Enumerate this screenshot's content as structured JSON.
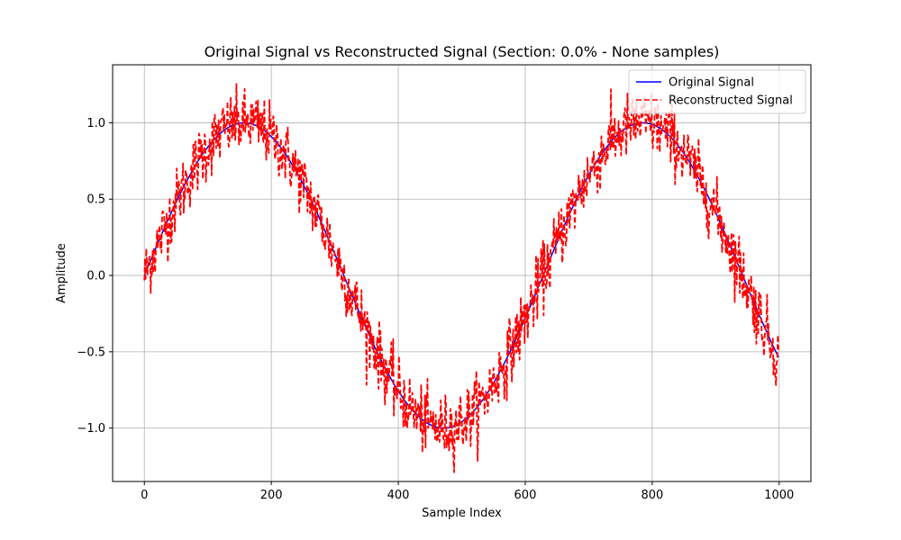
{
  "chart_data": {
    "type": "line",
    "title": "Original Signal vs Reconstructed Signal (Section: 0.0% - None samples)",
    "xlabel": "Sample Index",
    "ylabel": "Amplitude",
    "xlim": [
      -50,
      1050
    ],
    "ylim": [
      -1.35,
      1.38
    ],
    "xticks": [
      0,
      200,
      400,
      600,
      800,
      1000
    ],
    "yticks": [
      -1.0,
      -0.5,
      0.0,
      0.5,
      1.0
    ],
    "xtick_labels": [
      "0",
      "200",
      "400",
      "600",
      "800",
      "1000"
    ],
    "ytick_labels": [
      "−1.0",
      "−0.5",
      "0.0",
      "0.5",
      "1.0"
    ],
    "grid": true,
    "legend_position": "top-right",
    "signal": {
      "form": "sine",
      "amplitude": 1.0,
      "period_samples": 628.3,
      "num_samples": 1000,
      "x_start": 0,
      "x_end": 999
    },
    "series": [
      {
        "name": "Original Signal",
        "color": "#0000ff",
        "style": "solid",
        "x": [
          0,
          50,
          100,
          150,
          157,
          200,
          250,
          300,
          350,
          400,
          450,
          471,
          500,
          550,
          600,
          650,
          700,
          750,
          785,
          800,
          850,
          900,
          950,
          999
        ],
        "values": [
          0.0,
          0.48,
          0.84,
          1.0,
          1.0,
          0.95,
          0.71,
          0.32,
          -0.13,
          -0.58,
          -0.91,
          -1.0,
          -0.97,
          -0.78,
          -0.41,
          0.02,
          0.47,
          0.84,
          1.0,
          0.99,
          0.84,
          0.44,
          -0.03,
          -0.54
        ]
      },
      {
        "name": "Reconstructed Signal",
        "color": "#ff0000",
        "style": "dashed",
        "noise_amplitude": 0.15,
        "x": [
          0,
          50,
          100,
          150,
          157,
          200,
          250,
          300,
          350,
          400,
          450,
          471,
          500,
          550,
          600,
          650,
          700,
          750,
          785,
          800,
          850,
          900,
          950,
          999
        ],
        "values": [
          0.02,
          0.5,
          0.86,
          1.05,
          1.1,
          0.93,
          0.74,
          0.3,
          -0.15,
          -0.6,
          -0.93,
          -1.05,
          -0.95,
          -0.8,
          -0.4,
          0.04,
          0.5,
          0.86,
          1.02,
          1.01,
          0.82,
          0.46,
          -0.05,
          -0.56
        ]
      }
    ]
  }
}
